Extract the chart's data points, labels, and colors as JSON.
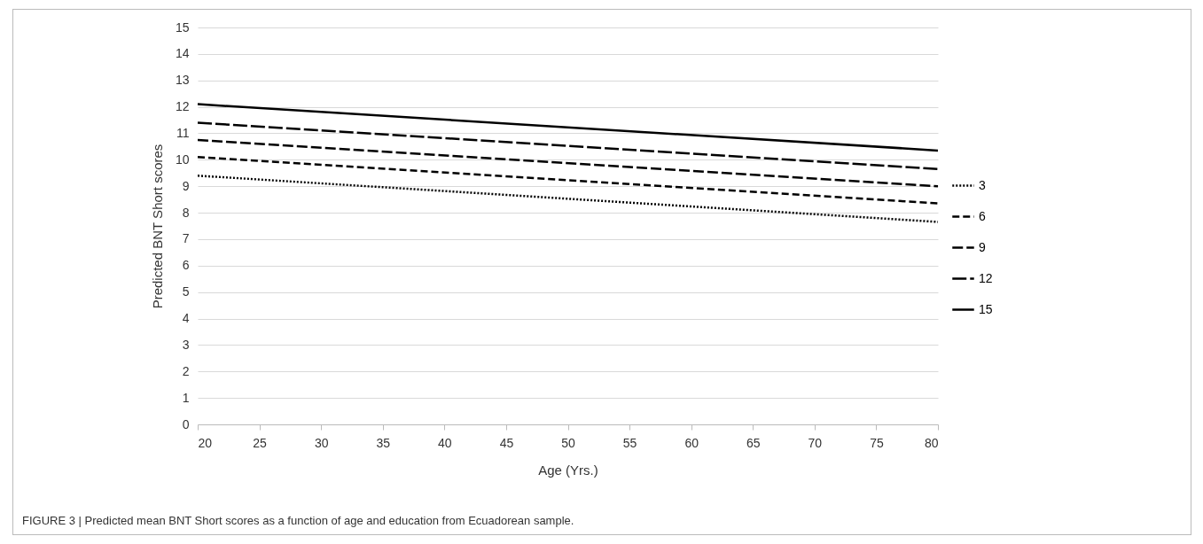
{
  "chart_data": {
    "type": "line",
    "xlabel": "Age (Yrs.)",
    "ylabel": "Predicted BNT Short scores",
    "x": [
      20,
      80
    ],
    "series": [
      {
        "name": "3",
        "color": "#000000",
        "line_style": "dotted",
        "values": [
          9.4,
          7.65
        ]
      },
      {
        "name": "6",
        "color": "#000000",
        "line_style": "dashed",
        "values": [
          10.1,
          8.35
        ]
      },
      {
        "name": "9",
        "color": "#000000",
        "line_style": "dashed",
        "values": [
          10.75,
          9.0
        ]
      },
      {
        "name": "12",
        "color": "#000000",
        "line_style": "dashed",
        "values": [
          11.4,
          9.65
        ]
      },
      {
        "name": "15",
        "color": "#000000",
        "line_style": "solid",
        "values": [
          12.1,
          10.35
        ]
      }
    ],
    "xlim": [
      20,
      80
    ],
    "xticks": [
      20,
      25,
      30,
      35,
      40,
      45,
      50,
      55,
      60,
      65,
      70,
      75,
      80
    ],
    "ylim": [
      0,
      15
    ],
    "yticks": [
      0,
      1,
      2,
      3,
      4,
      5,
      6,
      7,
      8,
      9,
      10,
      11,
      12,
      13,
      14,
      15
    ],
    "grid": "y",
    "legend": "right",
    "marker": "none",
    "annotations": [
      "FIGURE 3 | Predicted mean BNT Short scores as a function of age and education from Ecuadorean sample."
    ]
  }
}
